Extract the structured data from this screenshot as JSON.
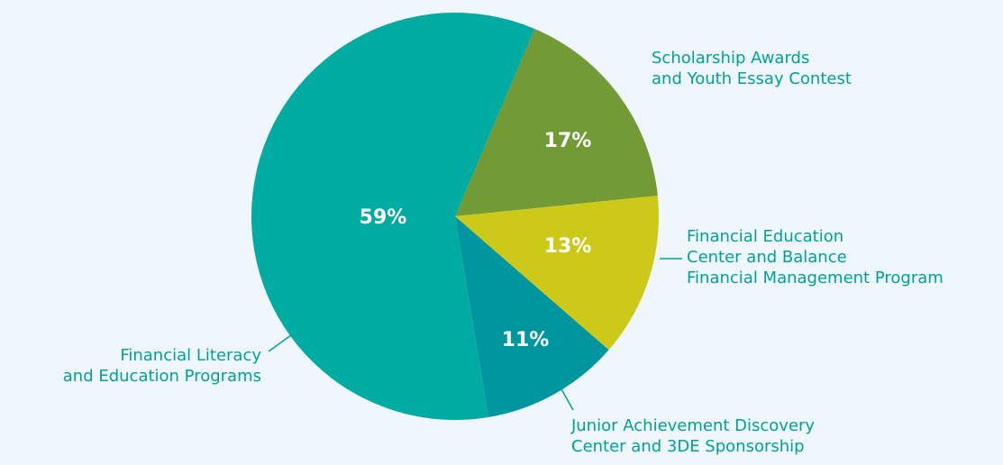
{
  "chart_data": {
    "type": "pie",
    "categories": [
      [
        "Scholarship Awards",
        "and Youth Essay Contest"
      ],
      [
        "Financial Education",
        "Center and Balance",
        "Financial Management Program"
      ],
      [
        "Junior Achievement Discovery",
        "Center and 3DE Sponsorship"
      ],
      [
        "Financial Literacy",
        "and Education Programs"
      ]
    ],
    "values": [
      17,
      13,
      11,
      59
    ],
    "value_labels": [
      "17%",
      "13%",
      "11%",
      "59%"
    ],
    "colors": [
      "#729b36",
      "#cdc918",
      "#0096a0",
      "#00aba1"
    ]
  }
}
